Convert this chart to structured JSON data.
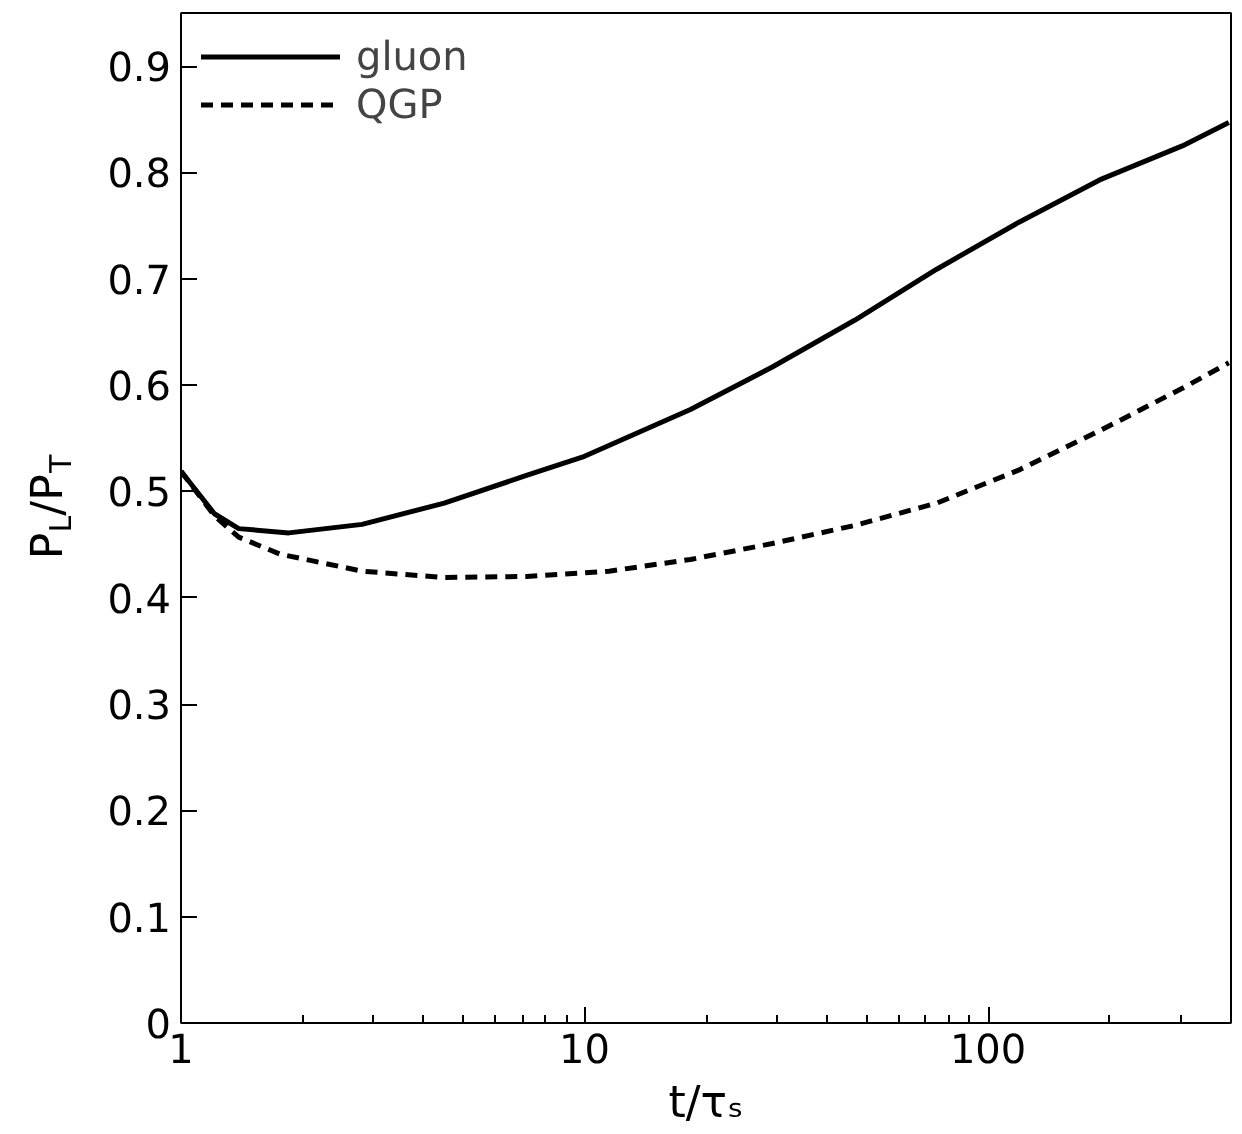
{
  "chart_data": {
    "type": "line",
    "xlabel": "t/τₛ",
    "ylabel": "P$_{L}$/P$_{T}$",
    "log": "x",
    "xlim": [
      1,
      400
    ],
    "xticks": [
      1,
      10,
      100
    ],
    "ylim": [
      0,
      0.95
    ],
    "yticks": [
      0,
      0.1,
      0.2,
      0.3,
      0.4,
      0.5,
      0.6,
      0.7,
      0.8,
      0.9
    ],
    "grid": false,
    "legend": "top left",
    "marker": "none",
    "series": [
      {
        "name": "gluon",
        "color": "#000000",
        "line_style": "solid",
        "x": [
          1,
          1.21,
          1.39,
          1.85,
          2.81,
          4.49,
          7.18,
          10,
          18.3,
          29.2,
          46.7,
          74.6,
          119,
          189,
          303,
          395
        ],
        "values": [
          0.519,
          0.479,
          0.465,
          0.461,
          0.469,
          0.489,
          0.515,
          0.533,
          0.577,
          0.617,
          0.661,
          0.709,
          0.753,
          0.793,
          0.825,
          0.847
        ]
      },
      {
        "name": "QGP",
        "color": "#000000",
        "line_style": "dashed",
        "x": [
          1,
          1.21,
          1.39,
          1.76,
          2.81,
          4.49,
          7.18,
          11.5,
          18.3,
          29.2,
          46.7,
          74.6,
          119,
          189,
          303,
          395
        ],
        "values": [
          0.519,
          0.477,
          0.457,
          0.441,
          0.425,
          0.419,
          0.42,
          0.425,
          0.436,
          0.451,
          0.468,
          0.489,
          0.52,
          0.557,
          0.597,
          0.621
        ]
      }
    ]
  }
}
